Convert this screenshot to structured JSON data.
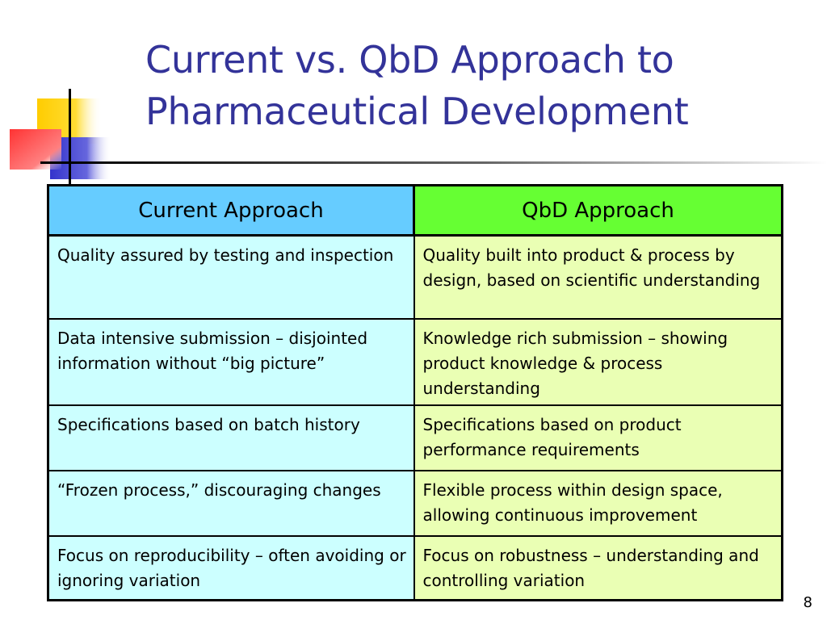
{
  "slide": {
    "title_line1": "Current vs. QbD Approach to",
    "title_line2": "Pharmaceutical Development",
    "page_number": "8"
  },
  "colors": {
    "title": "#333399",
    "header_current": "#66ccff",
    "header_qbd": "#66ff33",
    "cell_current": "#ccffff",
    "cell_qbd": "#eaffb4",
    "deco_yellow": "#ffcc00",
    "deco_blue": "#3333cc",
    "deco_red": "#ff3333"
  },
  "table": {
    "headers": {
      "current": "Current Approach",
      "qbd": "QbD Approach"
    },
    "rows": [
      {
        "current": "Quality assured by testing and inspection",
        "qbd": "Quality built into product & process by design, based on scientific understanding"
      },
      {
        "current": "Data intensive submission – disjointed information without “big picture”",
        "qbd": "Knowledge rich submission – showing product knowledge & process understanding"
      },
      {
        "current": "Specifications based on batch history",
        "qbd": "Specifications based on product performance requirements"
      },
      {
        "current": "“Frozen process,” discouraging changes",
        "qbd": "Flexible process within design space, allowing continuous improvement"
      },
      {
        "current": "Focus on reproducibility – often avoiding or ignoring variation",
        "qbd": "Focus on robustness – understanding and controlling variation"
      }
    ]
  }
}
